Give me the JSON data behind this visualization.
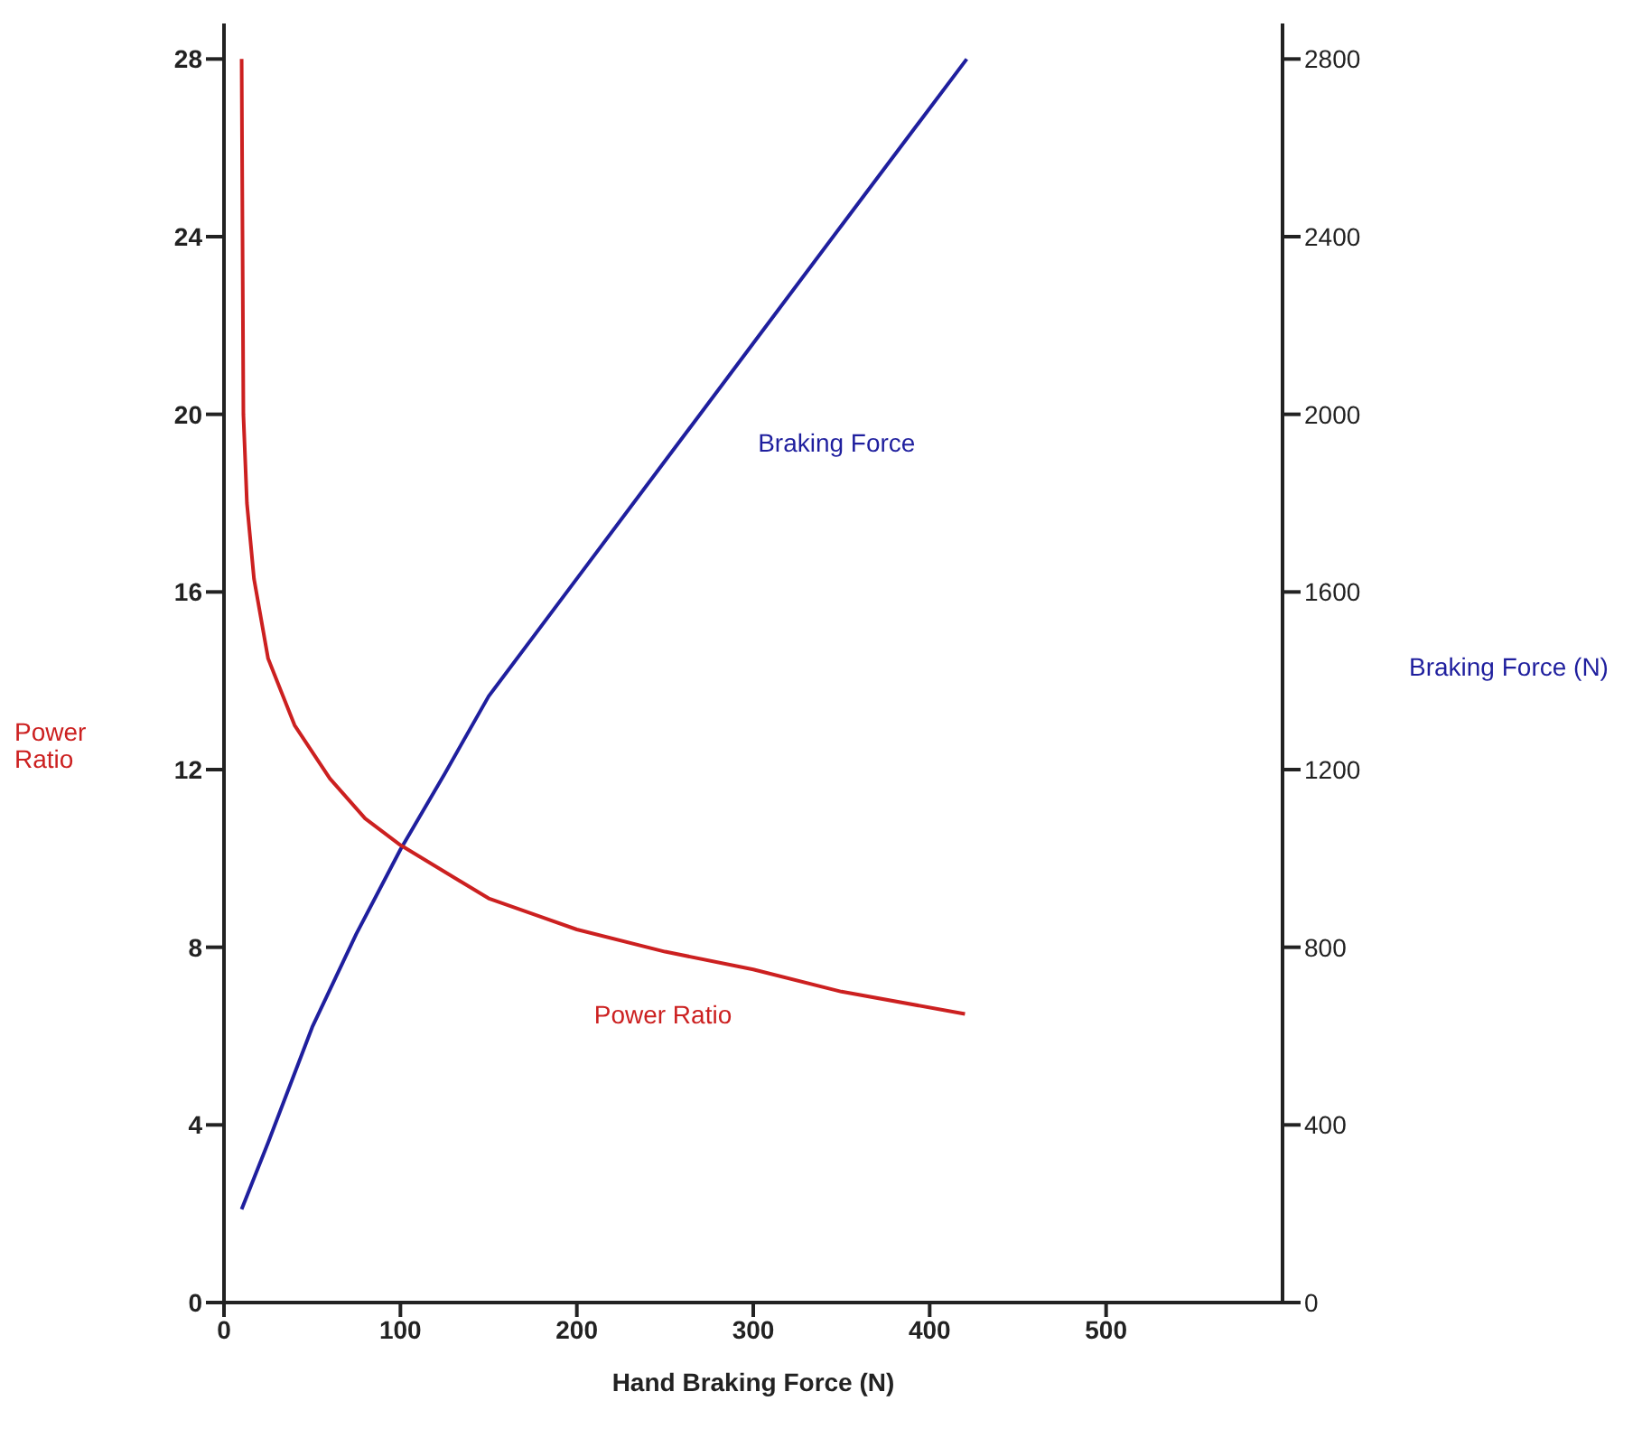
{
  "chart_data": {
    "type": "line",
    "xlabel": "Hand Braking Force (N)",
    "ylabel": "Power Ratio",
    "y2label": "Braking Force (N)",
    "xlim": [
      0,
      600
    ],
    "xticks": [
      0,
      100,
      200,
      300,
      400,
      500
    ],
    "ylim": [
      0,
      28.8
    ],
    "yticks": [
      0,
      4,
      8,
      12,
      16,
      20,
      24,
      28
    ],
    "y2lim": [
      0,
      2880
    ],
    "y2ticks": [
      0,
      400,
      800,
      1200,
      1600,
      2000,
      2400,
      2800
    ],
    "marker": "none",
    "line_style": "solid",
    "series": [
      {
        "name": "Braking Force",
        "color": "#1f1f9e",
        "axis": "y2",
        "x": [
          10,
          25,
          50,
          75,
          100,
          125,
          150,
          200,
          250,
          300,
          350,
          421
        ],
        "values": [
          210,
          360,
          620,
          830,
          1020,
          1190,
          1365,
          1630,
          1895,
          2160,
          2425,
          2800
        ]
      },
      {
        "name": "Power Ratio",
        "color": "#cc2020",
        "x": [
          10,
          11,
          13,
          17,
          25,
          40,
          60,
          80,
          100,
          150,
          200,
          250,
          300,
          350,
          420
        ],
        "values": [
          28,
          20,
          18,
          16.3,
          14.5,
          13,
          11.8,
          10.9,
          10.3,
          9.1,
          8.4,
          7.9,
          7.5,
          7.0,
          6.5
        ]
      }
    ]
  }
}
